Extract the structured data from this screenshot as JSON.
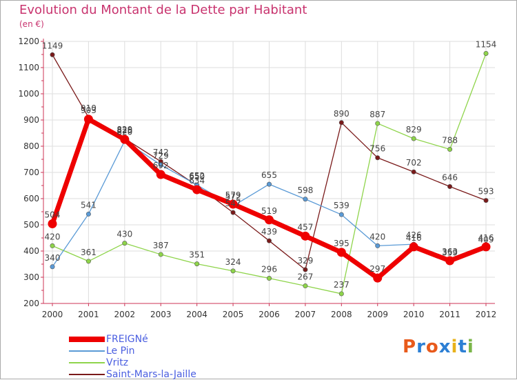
{
  "title": "Evolution du Montant de la Dette par Habitant",
  "subtitle": "(en €)",
  "logo": {
    "text": "Proxiti",
    "colors": [
      "#e85a1b",
      "#2c7fd4",
      "#e85a1b",
      "#2c7fd4",
      "#e8b21b",
      "#2c7fd4",
      "#7ab648"
    ]
  },
  "chart_data": {
    "type": "line",
    "x": [
      "2000",
      "2001",
      "2002",
      "2003",
      "2004",
      "2005",
      "2006",
      "2007",
      "2008",
      "2009",
      "2010",
      "2011",
      "2012"
    ],
    "yticks": [
      "200",
      "300",
      "400",
      "500",
      "600",
      "700",
      "800",
      "900",
      "1000",
      "1100",
      "1200"
    ],
    "ylim": [
      200,
      1200
    ],
    "grid": true,
    "legend_position": "bottom-left",
    "series": [
      {
        "name": "Saint-Mars-la-Jaille",
        "color": "#7a1a1a",
        "values": [
          1149,
          910,
          829,
          742,
          650,
          547,
          439,
          329,
          890,
          756,
          702,
          646,
          593
        ]
      },
      {
        "name": "Vritz",
        "color": "#8ed44a",
        "values": [
          420,
          361,
          430,
          387,
          351,
          324,
          296,
          267,
          237,
          887,
          829,
          788,
          1154
        ]
      },
      {
        "name": "Le Pin",
        "color": "#5a9ad6",
        "values": [
          340,
          541,
          820,
          729,
          652,
          572,
          655,
          598,
          539,
          420,
          426,
          359,
          409
        ]
      },
      {
        "name": "FREIGNé",
        "color": "#ee0000",
        "values": [
          504,
          903,
          826,
          692,
          634,
          579,
          519,
          457,
          395,
          297,
          416,
          363,
          416
        ]
      }
    ],
    "legend": [
      {
        "name": "FREIGNé",
        "color": "#ee0000"
      },
      {
        "name": "Le Pin",
        "color": "#5a9ad6"
      },
      {
        "name": "Vritz",
        "color": "#8ed44a"
      },
      {
        "name": "Saint-Mars-la-Jaille",
        "color": "#7a1a1a"
      }
    ]
  }
}
